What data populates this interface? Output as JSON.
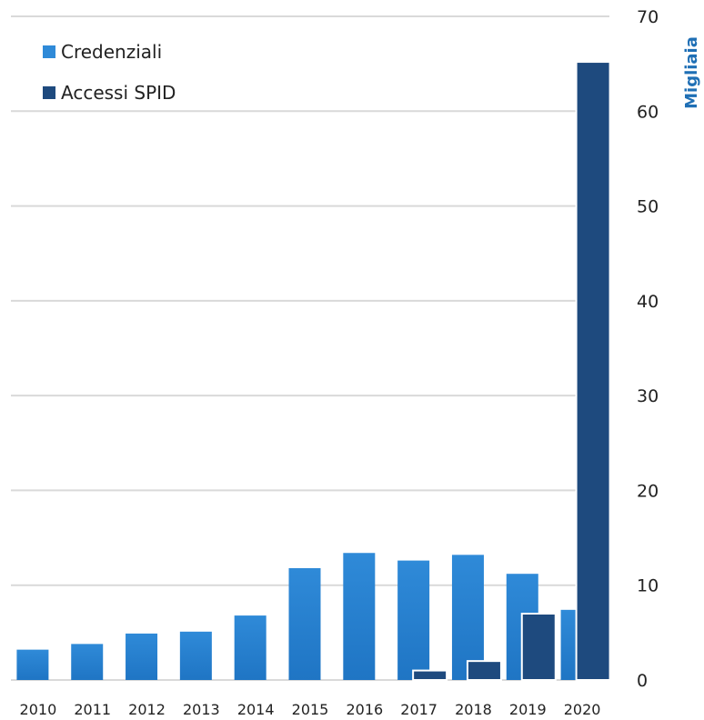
{
  "colors": {
    "credenziali": "#1f75c4",
    "credenziali_light": "#2f8ad8",
    "accessi": "#1e4a7e",
    "grid": "#d9d9d9",
    "ylabel": "#1f6fb5"
  },
  "chart_data": {
    "type": "bar",
    "categories": [
      "2010",
      "2011",
      "2012",
      "2013",
      "2014",
      "2015",
      "2016",
      "2017",
      "2018",
      "2019",
      "2020"
    ],
    "series": [
      {
        "name": "Credenziali",
        "values": [
          3.2,
          3.8,
          4.9,
          5.1,
          6.8,
          11.8,
          13.4,
          12.6,
          13.2,
          11.2,
          7.4
        ]
      },
      {
        "name": "Accessi SPID",
        "values": [
          0,
          0,
          0,
          0,
          0,
          0,
          0,
          1.0,
          2.0,
          7.0,
          65.2
        ]
      }
    ],
    "ylabel": "Migliaia",
    "ylim": [
      0,
      70
    ],
    "yticks": [
      "0",
      "10",
      "20",
      "30",
      "40",
      "50",
      "60",
      "70"
    ],
    "y_axis_position": "right",
    "grid": true,
    "legend": "top-left"
  }
}
